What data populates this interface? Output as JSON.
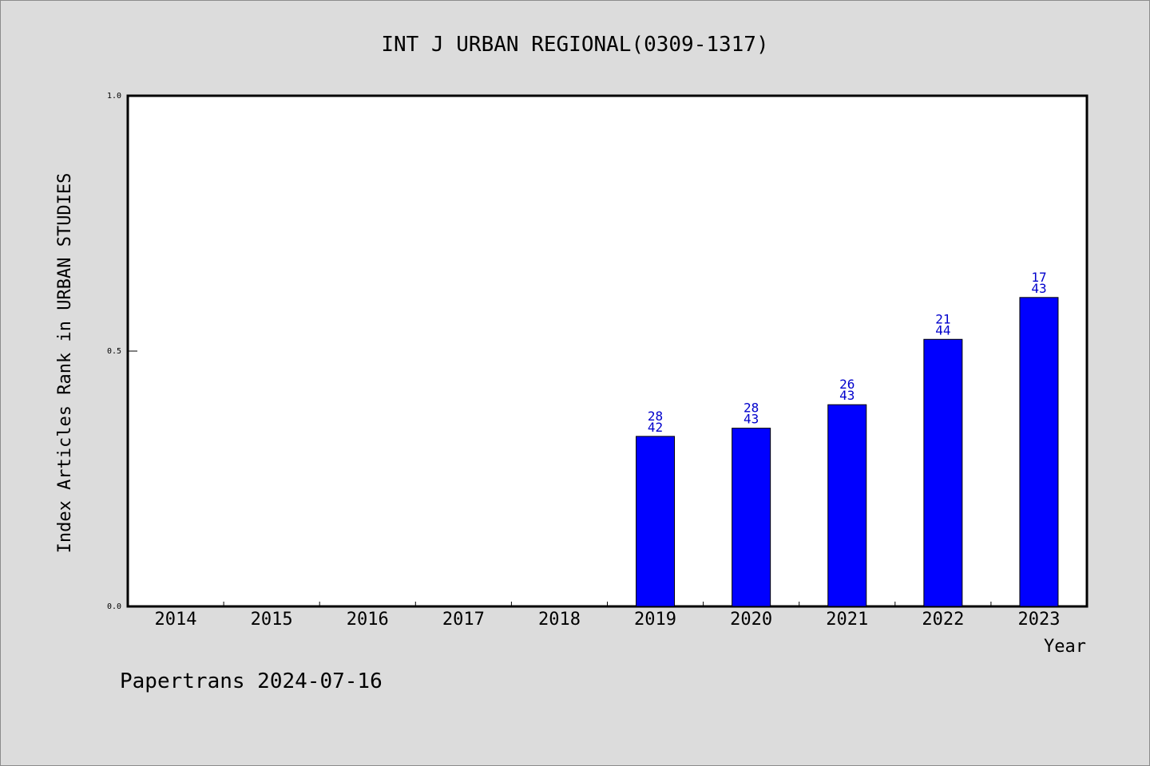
{
  "chart_data": {
    "type": "bar",
    "title": "INT J URBAN REGIONAL(0309-1317)",
    "xlabel": "Year",
    "ylabel": "Index Articles Rank in URBAN STUDIES",
    "categories": [
      "2014",
      "2015",
      "2016",
      "2017",
      "2018",
      "2019",
      "2020",
      "2021",
      "2022",
      "2023"
    ],
    "values": [
      null,
      null,
      null,
      null,
      null,
      0.333,
      0.349,
      0.395,
      0.523,
      0.605
    ],
    "ranks": [
      null,
      null,
      null,
      null,
      null,
      "28",
      "28",
      "26",
      "21",
      "17"
    ],
    "totals": [
      null,
      null,
      null,
      null,
      null,
      "42",
      "43",
      "43",
      "44",
      "43"
    ],
    "ylim": [
      0,
      1.0
    ],
    "yticks": [
      "0.0",
      "0.5",
      "1.0"
    ],
    "ytick_values": [
      0.0,
      0.5,
      1.0
    ],
    "bar_color": "#0000ff",
    "label_color": "#0000cc",
    "grid": false
  },
  "footer": {
    "text": "Papertrans 2024-07-16"
  }
}
